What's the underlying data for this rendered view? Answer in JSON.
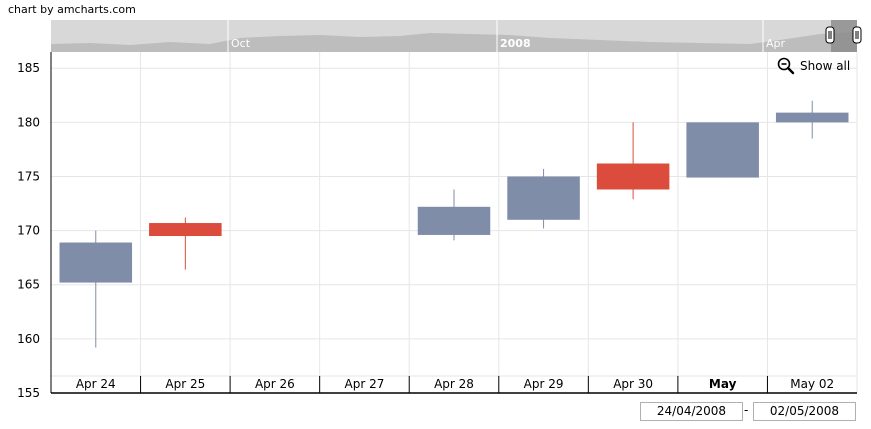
{
  "credit": "chart by amcharts.com",
  "show_all_label": "Show all",
  "period": {
    "start": "24/04/2008",
    "end": "02/05/2008",
    "separator": "-"
  },
  "scrollbar": {
    "labels": [
      "Oct",
      "2008",
      "Apr"
    ]
  },
  "colors": {
    "up": "#7f8da9",
    "down": "#db4c3c",
    "grid": "#e6e6e6",
    "axis": "#000000"
  },
  "chart_data": {
    "type": "candlestick",
    "categories": [
      "Apr 24",
      "Apr 25",
      "Apr 26",
      "Apr 27",
      "Apr 28",
      "Apr 29",
      "Apr 30",
      "May",
      "May 02"
    ],
    "bold_categories": [
      "May"
    ],
    "series": [
      {
        "date": "Apr 24",
        "open": 165.2,
        "high": 170.0,
        "low": 159.2,
        "close": 168.9,
        "direction": "up"
      },
      {
        "date": "Apr 25",
        "open": 170.7,
        "high": 171.2,
        "low": 166.4,
        "close": 169.5,
        "direction": "down"
      },
      {
        "date": "Apr 28",
        "open": 169.6,
        "high": 173.8,
        "low": 169.1,
        "close": 172.2,
        "direction": "up"
      },
      {
        "date": "Apr 29",
        "open": 171.0,
        "high": 175.7,
        "low": 170.2,
        "close": 175.0,
        "direction": "up"
      },
      {
        "date": "Apr 30",
        "open": 176.2,
        "high": 180.0,
        "low": 172.9,
        "close": 173.8,
        "direction": "down"
      },
      {
        "date": "May",
        "open": 174.9,
        "high": 180.0,
        "low": 174.9,
        "close": 180.0,
        "direction": "up"
      },
      {
        "date": "May 02",
        "open": 180.0,
        "high": 182.0,
        "low": 178.5,
        "close": 180.9,
        "direction": "up"
      }
    ],
    "y_ticks": [
      155,
      160,
      165,
      170,
      175,
      180,
      185
    ],
    "ylim": [
      155,
      186.5
    ],
    "grid": true
  }
}
